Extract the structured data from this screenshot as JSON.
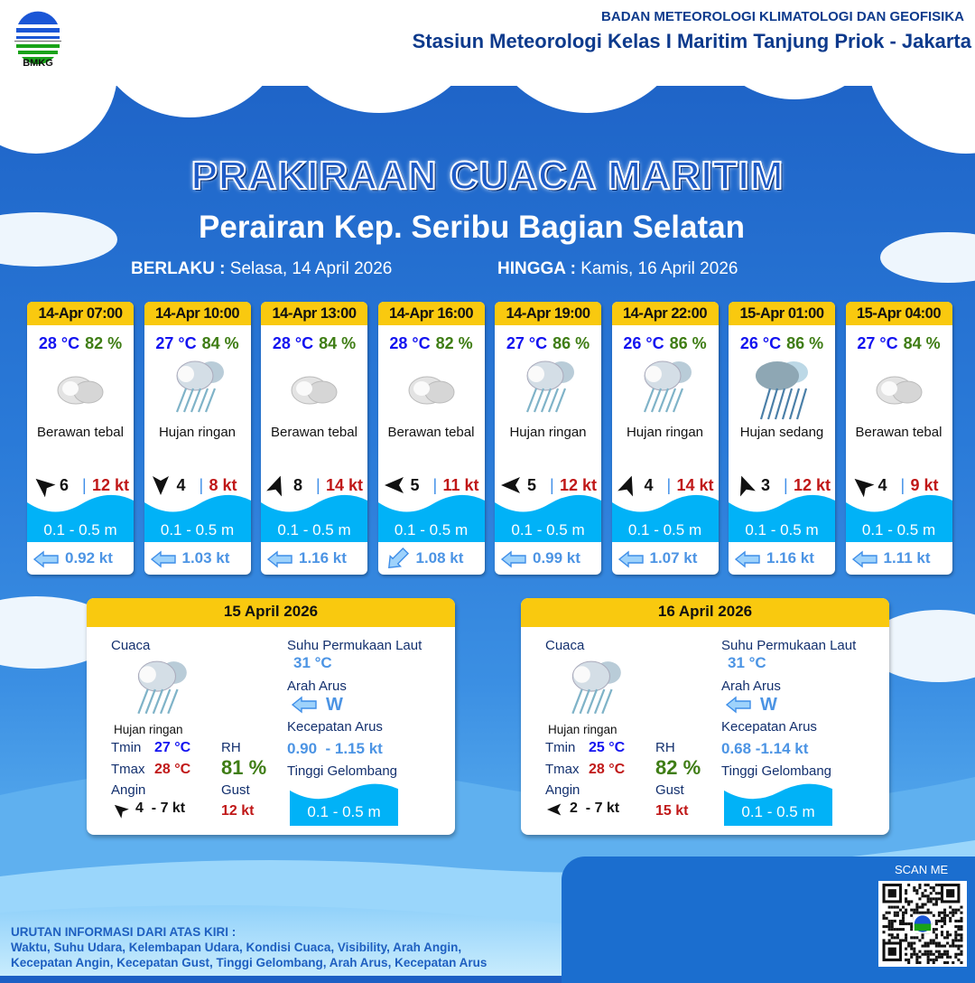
{
  "header": {
    "logo_text": "BMKG",
    "org": "BADAN METEOROLOGI KLIMATOLOGI DAN GEOFISIKA",
    "station": "Stasiun Meteorologi Kelas I Maritim Tanjung Priok - Jakarta"
  },
  "title": "PRAKIRAAN CUACA MARITIM",
  "subtitle": "Perairan Kep. Seribu Bagian Selatan",
  "validity": {
    "from_label": "BERLAKU :",
    "from": "Selasa, 14 April 2026",
    "to_label": "HINGGA :",
    "to": "Kamis, 16 April 2026"
  },
  "forecasts": [
    {
      "time": "14-Apr 07:00",
      "temp": "28 °C",
      "rh": "82 %",
      "icon": "cloud-icon",
      "cond": "Berawan tebal",
      "wind_dir_deg": -140,
      "wind": "6",
      "gust": "12 kt",
      "wave": "0.1 - 0.5 m",
      "current_dir_deg": 0,
      "current": "0.92 kt"
    },
    {
      "time": "14-Apr 10:00",
      "temp": "27 °C",
      "rh": "84 %",
      "icon": "light-rain-icon",
      "cond": "Hujan ringan",
      "wind_dir_deg": 90,
      "wind": "4",
      "gust": "8 kt",
      "wave": "0.1 - 0.5 m",
      "current_dir_deg": 0,
      "current": "1.03 kt"
    },
    {
      "time": "14-Apr 13:00",
      "temp": "28 °C",
      "rh": "84 %",
      "icon": "cloud-icon",
      "cond": "Berawan tebal",
      "wind_dir_deg": -70,
      "wind": "8",
      "gust": "14 kt",
      "wave": "0.1 - 0.5 m",
      "current_dir_deg": 0,
      "current": "1.16 kt"
    },
    {
      "time": "14-Apr 16:00",
      "temp": "28 °C",
      "rh": "82 %",
      "icon": "cloud-icon",
      "cond": "Berawan tebal",
      "wind_dir_deg": 180,
      "wind": "5",
      "gust": "11 kt",
      "wave": "0.1 - 0.5 m",
      "current_dir_deg": -45,
      "current": "1.08 kt"
    },
    {
      "time": "14-Apr 19:00",
      "temp": "27 °C",
      "rh": "86 %",
      "icon": "light-rain-icon",
      "cond": "Hujan ringan",
      "wind_dir_deg": 180,
      "wind": "5",
      "gust": "12 kt",
      "wave": "0.1 - 0.5 m",
      "current_dir_deg": 0,
      "current": "0.99 kt"
    },
    {
      "time": "14-Apr 22:00",
      "temp": "26 °C",
      "rh": "86 %",
      "icon": "light-rain-icon",
      "cond": "Hujan ringan",
      "wind_dir_deg": -70,
      "wind": "4",
      "gust": "14 kt",
      "wave": "0.1 - 0.5 m",
      "current_dir_deg": 0,
      "current": "1.07 kt"
    },
    {
      "time": "15-Apr 01:00",
      "temp": "26 °C",
      "rh": "86 %",
      "icon": "moderate-rain-icon",
      "cond": "Hujan sedang",
      "wind_dir_deg": -110,
      "wind": "3",
      "gust": "12 kt",
      "wave": "0.1 - 0.5 m",
      "current_dir_deg": 0,
      "current": "1.16 kt"
    },
    {
      "time": "15-Apr 04:00",
      "temp": "27 °C",
      "rh": "84 %",
      "icon": "cloud-icon",
      "cond": "Berawan tebal",
      "wind_dir_deg": -140,
      "wind": "4",
      "gust": "9 kt",
      "wave": "0.1 - 0.5 m",
      "current_dir_deg": 0,
      "current": "1.11 kt"
    }
  ],
  "labels": {
    "cuaca": "Cuaca",
    "sst": "Suhu Permukaan Laut",
    "arah_arus": "Arah Arus",
    "kec_arus": "Kecepatan Arus",
    "tinggi": "Tinggi Gelombang",
    "tmin": "Tmin",
    "tmax": "Tmax",
    "rh": "RH",
    "angin": "Angin",
    "gust": "Gust"
  },
  "daily": [
    {
      "date": "15 April 2026",
      "icon": "light-rain-icon",
      "cond": "Hujan ringan",
      "tmin": "27 °C",
      "tmax": "28 °C",
      "rh": "81 %",
      "wind_dir_deg": -140,
      "wind": "4  - 7 kt",
      "gust": "12 kt",
      "sst": "31 °C",
      "current_dir": "W",
      "current": "0.90  - 1.15 kt",
      "wave": "0.1 - 0.5 m"
    },
    {
      "date": "16 April 2026",
      "icon": "light-rain-icon",
      "cond": "Hujan ringan",
      "tmin": "25 °C",
      "tmax": "28 °C",
      "rh": "82 %",
      "wind_dir_deg": 180,
      "wind": "2  - 7 kt",
      "gust": "15 kt",
      "sst": "31 °C",
      "current_dir": "W",
      "current": "0.68 -1.14 kt",
      "wave": "0.1 - 0.5 m"
    }
  ],
  "footer": {
    "scan": "SCAN ME",
    "info_title": "URUTAN INFORMASI DARI ATAS KIRI :",
    "info_line1": "Waktu, Suhu Udara, Kelembapan Udara, Kondisi Cuaca, Visibility, Arah Angin,",
    "info_line2": "Kecepatan Angin, Kecepatan Gust, Tinggi Gelombang, Arah Arus, Kecepatan Arus"
  }
}
